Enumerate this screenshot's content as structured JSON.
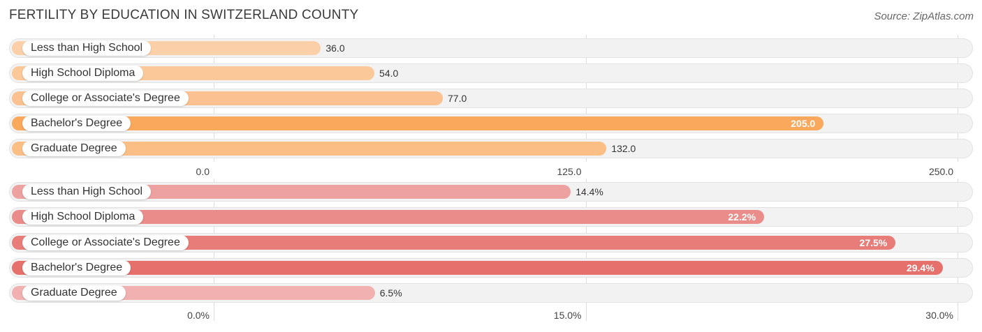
{
  "header": {
    "title": "FERTILITY BY EDUCATION IN SWITZERLAND COUNTY",
    "source": "Source: ZipAtlas.com"
  },
  "chart_data": [
    {
      "type": "bar",
      "orientation": "horizontal",
      "categories": [
        "Less than High School",
        "High School Diploma",
        "College or Associate's Degree",
        "Bachelor's Degree",
        "Graduate Degree"
      ],
      "values": [
        36.0,
        54.0,
        77.0,
        205.0,
        132.0
      ],
      "value_labels": [
        "36.0",
        "54.0",
        "77.0",
        "205.0",
        "132.0"
      ],
      "xlim": [
        0,
        250
      ],
      "ticks": [
        "0.0",
        "125.0",
        "250.0"
      ],
      "tick_values": [
        0,
        125,
        250
      ],
      "colors": [
        "#fbd0a8",
        "#fbc89a",
        "#fbc190",
        "#f9a85c",
        "#fbbf86"
      ],
      "grid": true
    },
    {
      "type": "bar",
      "orientation": "horizontal",
      "categories": [
        "Less than High School",
        "High School Diploma",
        "College or Associate's Degree",
        "Bachelor's Degree",
        "Graduate Degree"
      ],
      "values": [
        14.4,
        22.2,
        27.5,
        29.4,
        6.5
      ],
      "value_labels": [
        "14.4%",
        "22.2%",
        "27.5%",
        "29.4%",
        "6.5%"
      ],
      "xlim": [
        0,
        30
      ],
      "ticks": [
        "0.0%",
        "15.0%",
        "30.0%"
      ],
      "tick_values": [
        0,
        15,
        30
      ],
      "colors": [
        "#eea1a1",
        "#e98c8a",
        "#e87c79",
        "#e5706c",
        "#f1b1b1"
      ],
      "grid": true
    }
  ]
}
